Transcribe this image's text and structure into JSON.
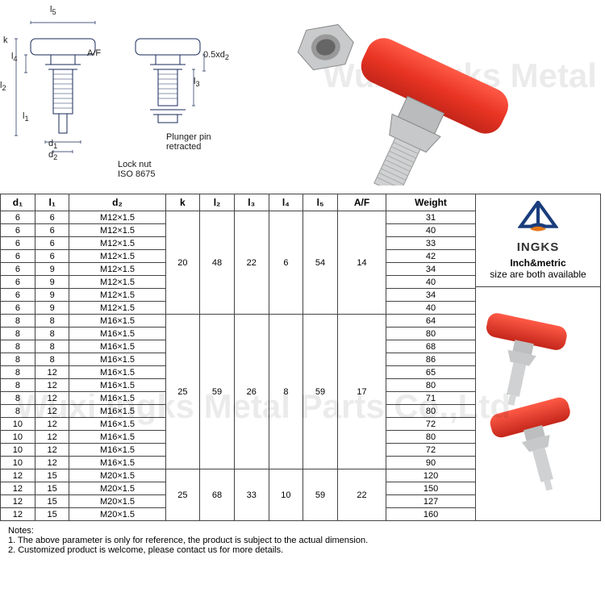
{
  "watermark": "Wuxi Ingks Metal Parts Co.,Ltd",
  "diagram_labels": {
    "l5": "l",
    "l5_sub": "5",
    "k": "k",
    "l2": "l",
    "l2_sub": "2",
    "l4": "l",
    "l4_sub": "4",
    "l1": "l",
    "l1_sub": "1",
    "d1": "d",
    "d1_sub": "1",
    "d2": "d",
    "d2_sub": "2",
    "af": "A/F",
    "l3": "l",
    "l3_sub": "3",
    "half_d2": "0.5xd",
    "half_d2_sub": "2",
    "plunger": "Plunger pin",
    "retracted": "retracted",
    "locknut1": "Lock nut",
    "locknut2": "ISO 8675"
  },
  "columns": [
    "d₁",
    "l₁",
    "d₂",
    "k",
    "l₂",
    "l₃",
    "l₄",
    "l₅",
    "A/F",
    "Weight"
  ],
  "groups": [
    {
      "merged": {
        "k": "20",
        "l2": "48",
        "l3": "22",
        "l4": "6",
        "l5": "54",
        "af": "14"
      },
      "rows": [
        {
          "d1": "6",
          "l1": "6",
          "d2": "M12×1.5",
          "w": "31"
        },
        {
          "d1": "6",
          "l1": "6",
          "d2": "M12×1.5",
          "w": "40"
        },
        {
          "d1": "6",
          "l1": "6",
          "d2": "M12×1.5",
          "w": "33"
        },
        {
          "d1": "6",
          "l1": "6",
          "d2": "M12×1.5",
          "w": "42"
        },
        {
          "d1": "6",
          "l1": "9",
          "d2": "M12×1.5",
          "w": "34"
        },
        {
          "d1": "6",
          "l1": "9",
          "d2": "M12×1.5",
          "w": "40"
        },
        {
          "d1": "6",
          "l1": "9",
          "d2": "M12×1.5",
          "w": "34"
        },
        {
          "d1": "6",
          "l1": "9",
          "d2": "M12×1.5",
          "w": "40"
        }
      ]
    },
    {
      "merged": {
        "k": "25",
        "l2": "59",
        "l3": "26",
        "l4": "8",
        "l5": "59",
        "af": "17"
      },
      "rows": [
        {
          "d1": "8",
          "l1": "8",
          "d2": "M16×1.5",
          "w": "64"
        },
        {
          "d1": "8",
          "l1": "8",
          "d2": "M16×1.5",
          "w": "80"
        },
        {
          "d1": "8",
          "l1": "8",
          "d2": "M16×1.5",
          "w": "68"
        },
        {
          "d1": "8",
          "l1": "8",
          "d2": "M16×1.5",
          "w": "86"
        },
        {
          "d1": "8",
          "l1": "12",
          "d2": "M16×1.5",
          "w": "65"
        },
        {
          "d1": "8",
          "l1": "12",
          "d2": "M16×1.5",
          "w": "80"
        },
        {
          "d1": "8",
          "l1": "12",
          "d2": "M16×1.5",
          "w": "71"
        },
        {
          "d1": "8",
          "l1": "12",
          "d2": "M16×1.5",
          "w": "80"
        },
        {
          "d1": "10",
          "l1": "12",
          "d2": "M16×1.5",
          "w": "72"
        },
        {
          "d1": "10",
          "l1": "12",
          "d2": "M16×1.5",
          "w": "80"
        },
        {
          "d1": "10",
          "l1": "12",
          "d2": "M16×1.5",
          "w": "72"
        },
        {
          "d1": "10",
          "l1": "12",
          "d2": "M16×1.5",
          "w": "90"
        }
      ]
    },
    {
      "merged": {
        "k": "25",
        "l2": "68",
        "l3": "33",
        "l4": "10",
        "l5": "59",
        "af": "22"
      },
      "rows": [
        {
          "d1": "12",
          "l1": "15",
          "d2": "M20×1.5",
          "w": "120"
        },
        {
          "d1": "12",
          "l1": "15",
          "d2": "M20×1.5",
          "w": "150"
        },
        {
          "d1": "12",
          "l1": "15",
          "d2": "M20×1.5",
          "w": "127"
        },
        {
          "d1": "12",
          "l1": "15",
          "d2": "M20×1.5",
          "w": "160"
        }
      ]
    }
  ],
  "logo": {
    "brand": "INGKS",
    "tag_bold": "Inch&metric",
    "tag_rest": "size are both available"
  },
  "notes": {
    "title": "Notes:",
    "n1": "1. The above parameter is only for reference, the product is subject to the actual dimension.",
    "n2": "2. Customized product is welcome, please contact us for more details."
  },
  "colors": {
    "handle": "#e93423",
    "metal": "#c9cbcd",
    "line": "#1a2a5a",
    "logo_blue": "#1a3d7c",
    "logo_orange": "#e67817"
  }
}
